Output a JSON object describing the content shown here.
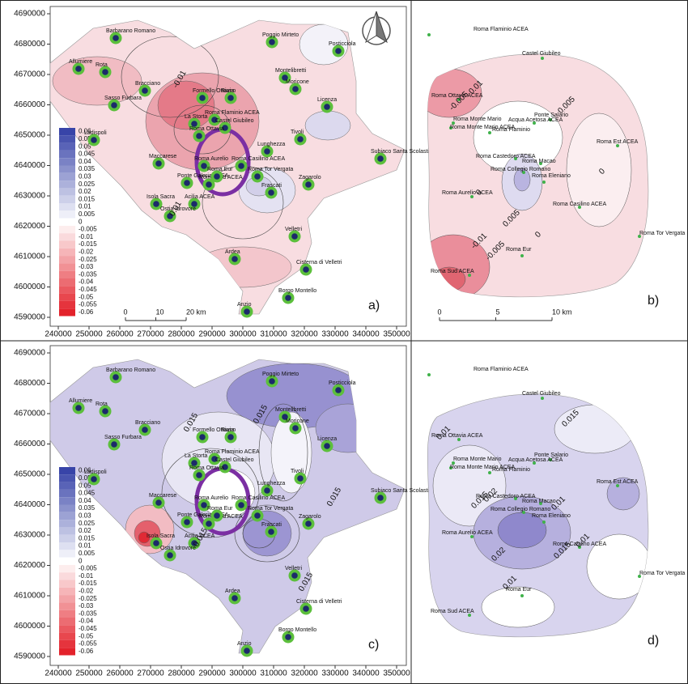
{
  "axes": {
    "x_ticks": [
      240000,
      250000,
      260000,
      270000,
      280000,
      290000,
      300000,
      310000,
      320000,
      330000,
      340000,
      350000
    ],
    "y_ticks": [
      4690000,
      4680000,
      4670000,
      4660000,
      4650000,
      4640000,
      4630000,
      4620000,
      4610000,
      4600000,
      4590000
    ]
  },
  "legend": {
    "ticks": [
      0.06,
      0.055,
      0.05,
      0.045,
      0.04,
      0.035,
      0.03,
      0.025,
      0.02,
      0.015,
      0.01,
      0.005,
      0,
      -0.005,
      -0.01,
      -0.015,
      -0.02,
      -0.025,
      -0.03,
      -0.035,
      -0.04,
      -0.045,
      -0.05,
      -0.055,
      -0.06
    ]
  },
  "stations_regional": [
    "Barbarano Romano",
    "Allumiere",
    "Rota",
    "Bracciano",
    "Sasso Furbara",
    "Poggio Mirteto",
    "Posticciola",
    "Montelibretti",
    "Moricone",
    "Formello Ottavia",
    "Riano",
    "Licenza",
    "La Storta",
    "Roma Flaminio ACEA",
    "Castel Giubileo",
    "Ladispoli",
    "Roma Ottavia",
    "Lunghezza",
    "Tivoli",
    "Subiaco Santa Scolastica",
    "Maccarese",
    "Roma Aurelio",
    "Roma Casilino ACEA",
    "Ponte Galeria ACEA",
    "Roma Sud ACEA",
    "Roma Eur",
    "Roma Tor Vergata",
    "Frascati",
    "Zagarolo",
    "Isola Sacra",
    "Acilia ACEA",
    "Ostia Idrovore",
    "Velletri",
    "Ardea",
    "Cisterna di Velletri",
    "Borgo Montello",
    "Anzio"
  ],
  "stations_rome": [
    "Roma Flaminio ACEA",
    "Castel Giubileo",
    "Roma Ottavia ACEA",
    "Roma Monte Mario",
    "Roma Monte Mario ACEA",
    "Roma Flaminio",
    "Ponte Salario",
    "Acqua Acetosa ACEA",
    "Roma Est ACEA",
    "Roma Castedoro ACEA",
    "Roma Macao",
    "Roma Collegio Romano",
    "Roma Eleniano",
    "Roma Aurelio ACEA",
    "Roma Casilino ACEA",
    "Roma Tor Vergata",
    "Roma Eur",
    "Roma Sud ACEA"
  ],
  "panels": [
    {
      "label": "a)",
      "contour_labels": [
        "-0.01",
        "0.01"
      ],
      "scale": [
        "0",
        "10",
        "20 km"
      ]
    },
    {
      "label": "b)",
      "contour_labels": [
        "0.01",
        "-0.005",
        "0.005",
        "0",
        "0",
        "0.005",
        "0",
        "-0.01",
        "-0.005"
      ],
      "scale": [
        "0",
        "5",
        "10 km"
      ]
    },
    {
      "label": "c)",
      "contour_labels": [
        "0.015",
        "0.015",
        "0.015",
        "0.015",
        "0.015"
      ]
    },
    {
      "label": "d)",
      "contour_labels": [
        "0.015",
        "0.01",
        "0.015",
        "0.02",
        "0.01",
        "0.015",
        "0.01",
        "0.02",
        "0.01"
      ]
    }
  ]
}
